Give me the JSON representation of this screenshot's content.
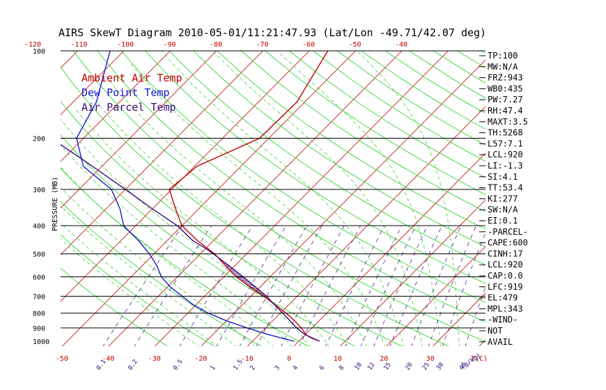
{
  "title": "AIRS SkewT Diagram 2010-05-01/11:21:47.93 (Lat/Lon -49.71/42.07 deg)",
  "ylabel": "PRESSURE (MB)",
  "colors": {
    "ambient": "#c00000",
    "dewpoint": "#1a1acc",
    "parcel": "#3c0a7a",
    "isotherm": "#c00000",
    "dry_adiabat": "#22cc22",
    "mixing": "#2a0a7a",
    "cape_hatch": "#3c0a7a"
  },
  "chart_data": {
    "type": "line",
    "title": "AIRS SkewT Diagram 2010-05-01/11:21:47.93 (Lat/Lon -49.71/42.07 deg)",
    "ylabel": "PRESSURE (MB)",
    "xlabel": "T(C)",
    "y_scale": "log",
    "ylim": [
      1050,
      100
    ],
    "pressure_ticks": [
      100,
      200,
      300,
      400,
      500,
      600,
      700,
      800,
      900,
      1000
    ],
    "pressure_gridlines": [
      200,
      300,
      400,
      500,
      600,
      700,
      800,
      900
    ],
    "bottom_temp_ticks": [
      "-50",
      "-40",
      "-30",
      "-20",
      "-10",
      "0",
      "10",
      "20",
      "30"
    ],
    "bottom_temp_values": [
      -50,
      -40,
      -30,
      -20,
      -10,
      0,
      10,
      20,
      30
    ],
    "top_temp_ticks": [
      "-120",
      "-110",
      "-100",
      "-90",
      "-80",
      "-70",
      "-60",
      "-50",
      "-40"
    ],
    "top_temp_values": [
      -120,
      -110,
      -100,
      -90,
      -80,
      -70,
      -60,
      -50,
      -40
    ],
    "mixing_ratio_ticks": [
      "0.1",
      "0.2",
      "0.5",
      "1",
      "1.5",
      "2",
      "3",
      "4",
      "6",
      "8",
      "10",
      "12",
      "15",
      "20",
      "25",
      "30",
      "40"
    ],
    "mixing_ratio_values": [
      0.1,
      0.2,
      0.5,
      1,
      1.5,
      2,
      3,
      4,
      6,
      8,
      10,
      12,
      15,
      20,
      25,
      30,
      40
    ],
    "mixing_unit_label": "(g/kg)",
    "legend": [
      "Ambient Air Temp",
      "Dew Point Temp",
      "Air Parcel Temp"
    ],
    "series": [
      {
        "name": "Ambient Air Temp",
        "pressure": [
          1000,
          975,
          950,
          900,
          850,
          800,
          750,
          700,
          650,
          600,
          550,
          500,
          450,
          400,
          350,
          300,
          250,
          200,
          150,
          100
        ],
        "temperature": [
          4.5,
          2.0,
          0.2,
          -2.3,
          -5.3,
          -8.8,
          -12.8,
          -17.2,
          -22.2,
          -27.3,
          -32.0,
          -36.9,
          -43.5,
          -50.0,
          -55.0,
          -60.5,
          -59.5,
          -52.0,
          -51.7,
          -56.0
        ]
      },
      {
        "name": "Dew Point Temp",
        "pressure": [
          1000,
          975,
          950,
          900,
          850,
          800,
          750,
          700,
          650,
          600,
          550,
          500,
          450,
          400,
          350,
          300,
          250,
          200,
          150,
          100
        ],
        "temperature": [
          -1.0,
          -4.4,
          -7.8,
          -14.0,
          -20.0,
          -25.6,
          -30.5,
          -34.8,
          -39.4,
          -43.5,
          -46.8,
          -51.0,
          -56.2,
          -62.6,
          -67.0,
          -73.0,
          -84.0,
          -91.5,
          -95.0,
          -103.0
        ]
      },
      {
        "name": "Air Parcel Temp",
        "pressure": [
          1000,
          975,
          950,
          920,
          900,
          850,
          800,
          750,
          700,
          650,
          600,
          550,
          500,
          479,
          450,
          400,
          350,
          300,
          250,
          200,
          150,
          100
        ],
        "temperature": [
          4.5,
          2.3,
          0.0,
          -2.0,
          -3.3,
          -6.3,
          -9.5,
          -13.0,
          -16.6,
          -21.0,
          -25.8,
          -31.2,
          -37.2,
          -40.0,
          -44.5,
          -51.0,
          -60.0,
          -70.0,
          -82.0,
          -97.0,
          -115.0,
          -140.0
        ]
      }
    ],
    "indices": [
      "TP:100",
      "MW:N/A",
      "FRZ:943",
      "WB0:435",
      "PW:7.27",
      "RH:47.4",
      "MAXT:3.5",
      "TH:5268",
      "L57:7.1",
      "LCL:920",
      "LI:-1.3",
      "SI:4.1",
      "TT:53.4",
      "KI:277",
      "SW:N/A",
      "EI:0.1",
      "-PARCEL-",
      "CAPE:600",
      "CINH:17",
      "LCL:920",
      "CAP:0.0",
      "LFC:919",
      "EL:479",
      "MPL:343",
      "-WIND-",
      "NOT",
      "AVAIL"
    ]
  }
}
